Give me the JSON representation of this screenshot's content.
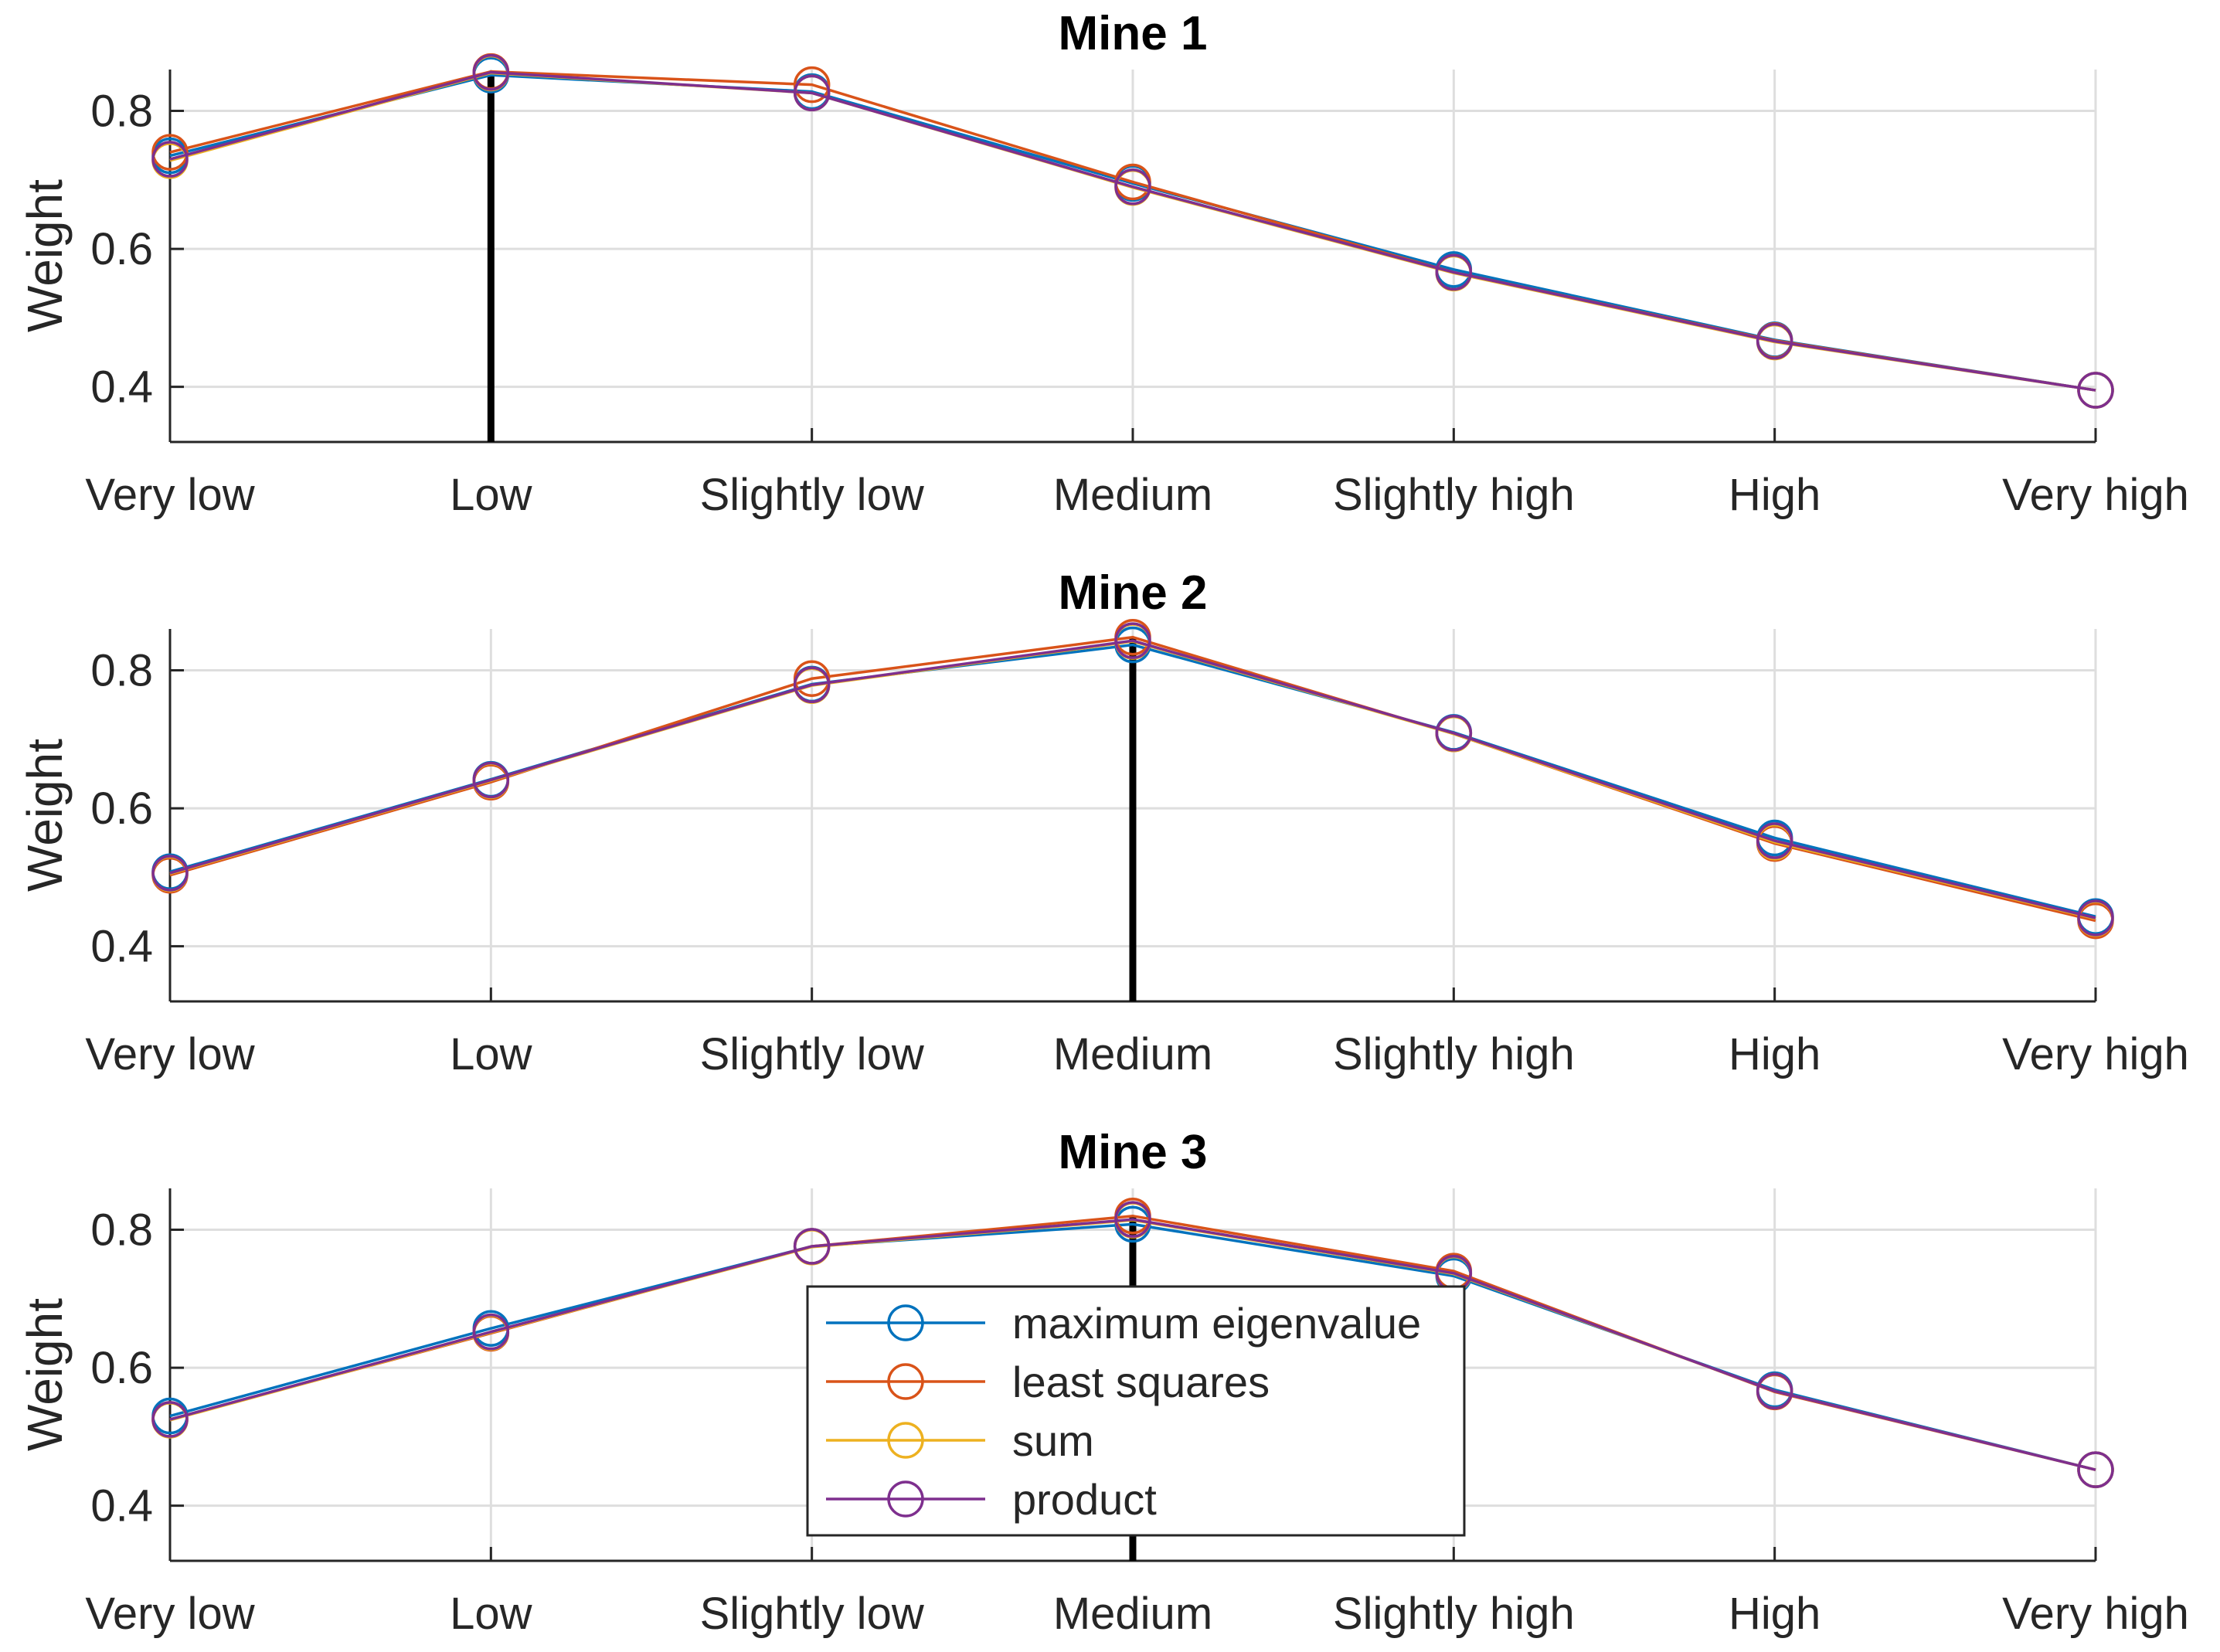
{
  "chart_data": [
    {
      "type": "line",
      "title": "Mine 1",
      "xlabel": "",
      "ylabel": "Weight",
      "categories": [
        "Very low",
        "Low",
        "Slightly low",
        "Medium",
        "Slightly high",
        "High",
        "Very high"
      ],
      "yticks": [
        "0.4",
        "0.6",
        "0.8"
      ],
      "ylim": [
        0.32,
        0.86
      ],
      "grid": true,
      "marker_line_at": "Low",
      "series": [
        {
          "name": "maximum eigenvalue",
          "color": "#0072BD",
          "values": [
            0.735,
            0.852,
            0.828,
            0.695,
            0.57,
            0.468,
            0.395
          ]
        },
        {
          "name": "least squares",
          "color": "#D95319",
          "values": [
            0.74,
            0.857,
            0.838,
            0.697,
            0.566,
            0.467,
            0.395
          ]
        },
        {
          "name": "sum",
          "color": "#EDB120",
          "values": [
            0.728,
            0.855,
            0.826,
            0.689,
            0.565,
            0.465,
            0.395
          ]
        },
        {
          "name": "product",
          "color": "#7E2F8E",
          "values": [
            0.73,
            0.856,
            0.826,
            0.69,
            0.566,
            0.466,
            0.395
          ]
        }
      ]
    },
    {
      "type": "line",
      "title": "Mine 2",
      "xlabel": "",
      "ylabel": "Weight",
      "categories": [
        "Very low",
        "Low",
        "Slightly low",
        "Medium",
        "Slightly high",
        "High",
        "Very high"
      ],
      "yticks": [
        "0.4",
        "0.6",
        "0.8"
      ],
      "ylim": [
        0.32,
        0.86
      ],
      "grid": true,
      "marker_line_at": "Medium",
      "series": [
        {
          "name": "maximum eigenvalue",
          "color": "#0072BD",
          "values": [
            0.508,
            0.642,
            0.78,
            0.837,
            0.71,
            0.557,
            0.443
          ]
        },
        {
          "name": "least squares",
          "color": "#D95319",
          "values": [
            0.503,
            0.638,
            0.788,
            0.848,
            0.708,
            0.549,
            0.437
          ]
        },
        {
          "name": "sum",
          "color": "#EDB120",
          "values": [
            0.505,
            0.64,
            0.778,
            0.842,
            0.708,
            0.551,
            0.44
          ]
        },
        {
          "name": "product",
          "color": "#7E2F8E",
          "values": [
            0.506,
            0.641,
            0.779,
            0.843,
            0.709,
            0.553,
            0.441
          ]
        }
      ]
    },
    {
      "type": "line",
      "title": "Mine 3",
      "xlabel": "",
      "ylabel": "Weight",
      "categories": [
        "Very low",
        "Low",
        "Slightly low",
        "Medium",
        "Slightly high",
        "High",
        "Very high"
      ],
      "yticks": [
        "0.4",
        "0.6",
        "0.8"
      ],
      "ylim": [
        0.32,
        0.86
      ],
      "grid": true,
      "marker_line_at": "Medium",
      "series": [
        {
          "name": "maximum eigenvalue",
          "color": "#0072BD",
          "values": [
            0.53,
            0.657,
            0.776,
            0.808,
            0.733,
            0.568,
            0.452
          ]
        },
        {
          "name": "least squares",
          "color": "#D95319",
          "values": [
            0.525,
            0.65,
            0.776,
            0.82,
            0.74,
            0.565,
            0.452
          ]
        },
        {
          "name": "sum",
          "color": "#EDB120",
          "values": [
            0.524,
            0.651,
            0.775,
            0.814,
            0.736,
            0.566,
            0.452
          ]
        },
        {
          "name": "product",
          "color": "#7E2F8E",
          "values": [
            0.525,
            0.652,
            0.776,
            0.815,
            0.737,
            0.566,
            0.452
          ]
        }
      ],
      "legend": {
        "placement": "lower-center",
        "entries": [
          "maximum eigenvalue",
          "least squares",
          "sum",
          "product"
        ]
      }
    }
  ]
}
